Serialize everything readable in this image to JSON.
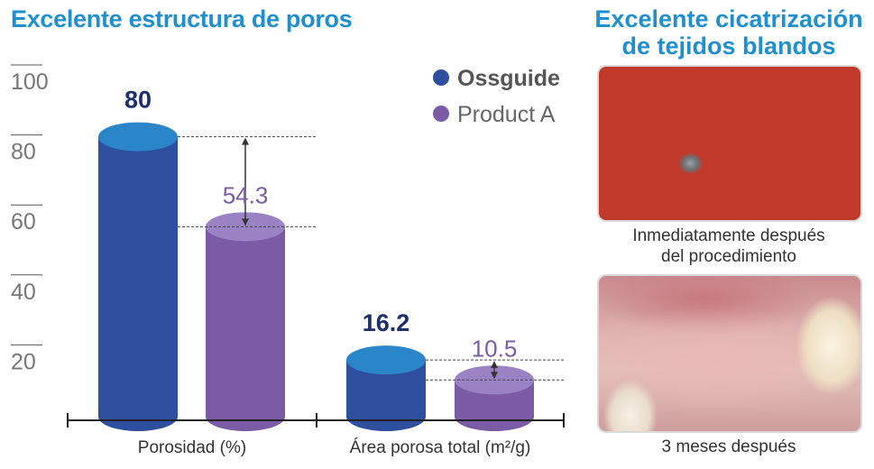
{
  "left_title": "Excelente estructura de poros",
  "right_title_line1": "Excelente cicatrización",
  "right_title_line2": "de tejidos blandos",
  "photos": [
    {
      "caption_line1": "Inmediatamente después",
      "caption_line2": "del procedimiento"
    },
    {
      "caption_line1": "3 meses después",
      "caption_line2": ""
    }
  ],
  "colors": {
    "title": "#1f8fd0",
    "ossguide": "#2e4f9e",
    "ossguide_top": "#2a86c8",
    "product_a": "#7b5aa6",
    "product_a_top": "#9a82c4",
    "ossguide_label": "#1f2f6e",
    "product_a_label": "#7b5aa6"
  },
  "chart_data": {
    "type": "bar",
    "categories": [
      "Porosidad (%)",
      "Área porosa total (m²/g)"
    ],
    "series": [
      {
        "name": "Ossguide",
        "values": [
          80,
          16.2
        ],
        "labels": [
          "80",
          "16.2"
        ]
      },
      {
        "name": "Product A",
        "values": [
          54.3,
          10.5
        ],
        "labels": [
          "54.3",
          "10.5"
        ]
      }
    ],
    "yticks": [
      "20",
      "40",
      "60",
      "80",
      "100"
    ],
    "ytick_values": [
      20,
      40,
      60,
      80,
      100
    ],
    "ylim": [
      0,
      100
    ],
    "legend_position": "top-right"
  }
}
